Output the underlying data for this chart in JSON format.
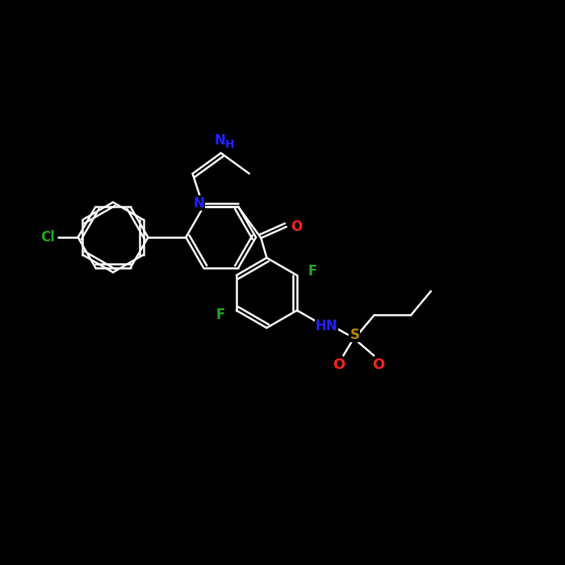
{
  "background_color": "#000000",
  "bond_color": "#ffffff",
  "colors": {
    "N": "#2222ff",
    "F": "#22aa22",
    "Cl": "#22aa22",
    "O": "#ff2222",
    "S": "#bb8800"
  },
  "lw": 1.8,
  "figsize": [
    7.0,
    7.0
  ],
  "dpi": 100
}
